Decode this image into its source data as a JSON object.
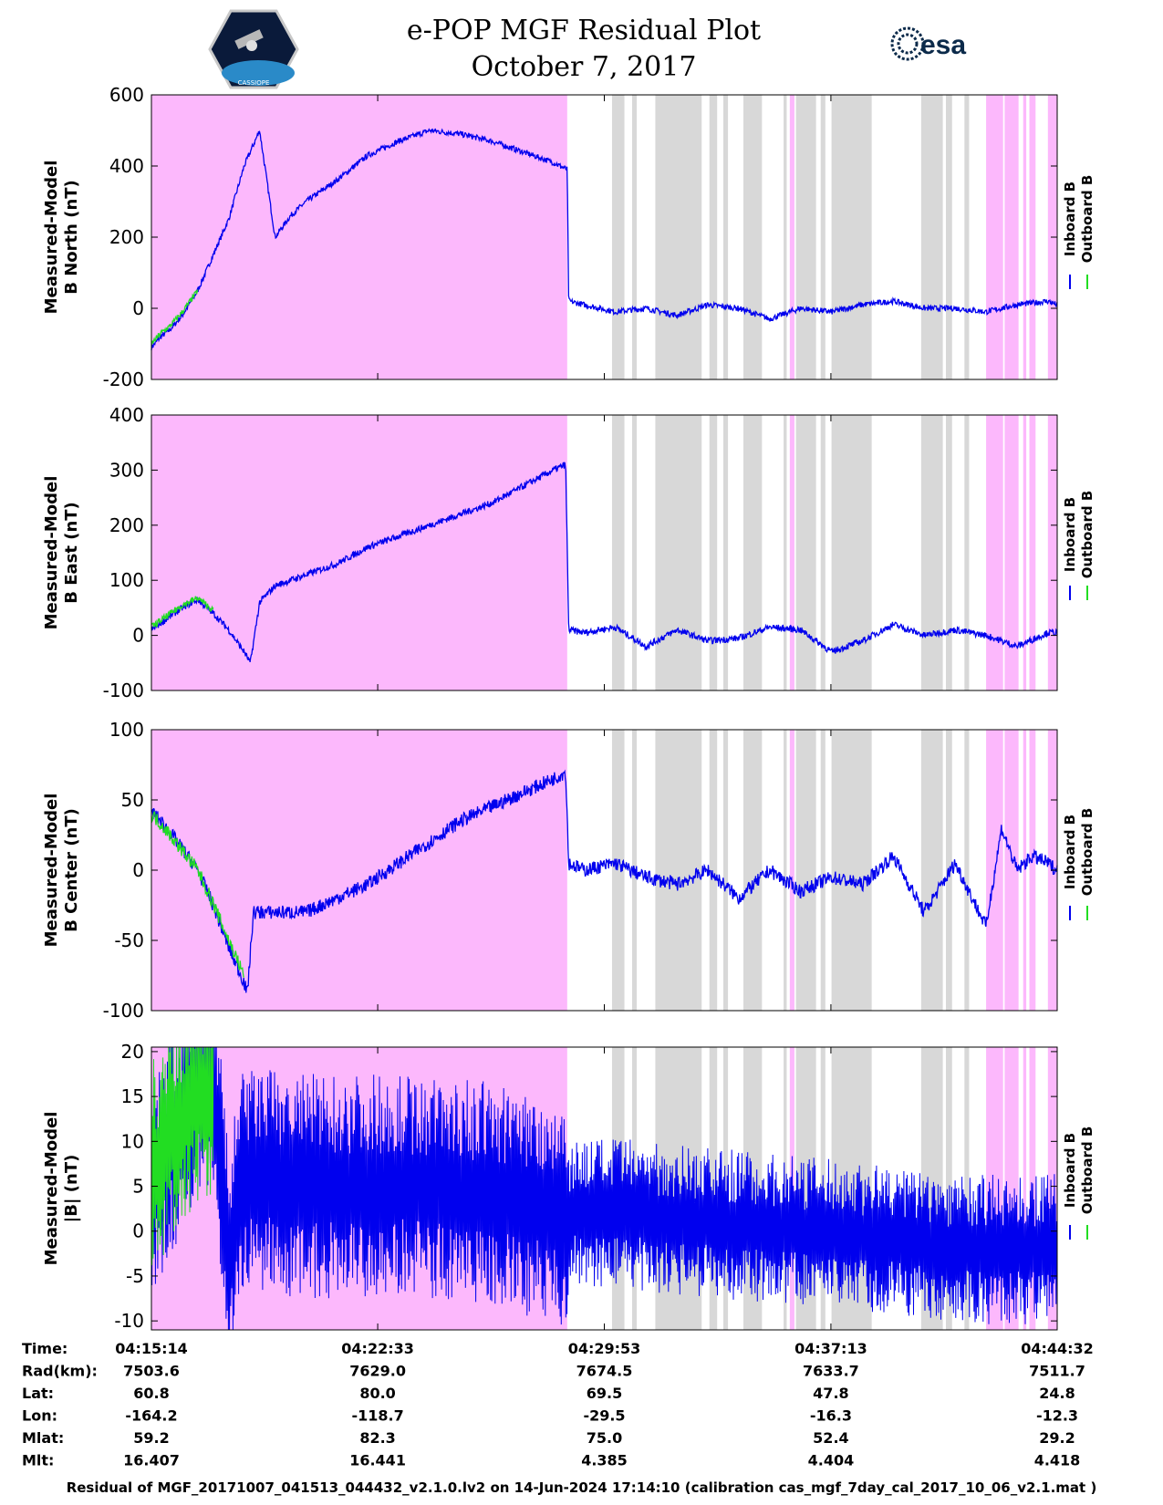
{
  "title": {
    "line1": "e-POP MGF Residual Plot",
    "line2": "October 7, 2017"
  },
  "logos": {
    "left_label": "CASSIOPE",
    "right_label": "esa"
  },
  "colors": {
    "magenta": "#fcb8fc",
    "gray": "#d8d8d8",
    "inboard": "#0000ee",
    "outboard": "#22dd22"
  },
  "chart_data": [
    {
      "type": "line",
      "id": "bnorth",
      "ylabel_line1": "Measured-Model",
      "ylabel_line2": "B North (nT)",
      "ylim": [
        -200,
        600
      ],
      "yticks": [
        600,
        400,
        200,
        0,
        -200
      ],
      "ytick_labels": [
        "600",
        "400",
        "200",
        "0",
        "-200"
      ],
      "legend": [
        "Inboard B",
        "Outboard B"
      ],
      "series": [
        {
          "name": "Inboard B",
          "x": [
            0,
            0.3,
            0.6,
            1.0,
            1.5,
            2.0,
            2.5,
            3.0,
            3.5,
            4.0,
            4.5,
            5.0,
            5.5,
            6.0,
            7.0,
            8.0,
            9.0,
            10.0,
            11.0,
            12.0,
            13.0,
            13.45,
            13.5,
            14,
            15,
            16,
            17,
            18,
            19,
            20,
            21,
            22,
            23,
            24,
            25,
            26,
            27,
            28,
            29,
            29.3
          ],
          "y": [
            -110,
            -80,
            -60,
            -20,
            50,
            150,
            250,
            400,
            500,
            200,
            260,
            300,
            330,
            360,
            430,
            470,
            500,
            490,
            470,
            440,
            410,
            390,
            20,
            10,
            -10,
            0,
            -20,
            10,
            0,
            -30,
            0,
            -10,
            10,
            20,
            0,
            0,
            -10,
            10,
            20,
            10
          ]
        },
        {
          "name": "Outboard B",
          "x": [
            0,
            0.3,
            0.6,
            1.0,
            1.5
          ],
          "y": [
            -100,
            -70,
            -50,
            -10,
            50
          ]
        }
      ]
    },
    {
      "type": "line",
      "id": "beast",
      "ylabel_line1": "Measured-Model",
      "ylabel_line2": "B East (nT)",
      "ylim": [
        -100,
        400
      ],
      "yticks": [
        400,
        300,
        200,
        100,
        0,
        -100
      ],
      "ytick_labels": [
        "400",
        "300",
        "200",
        "100",
        "0",
        "-100"
      ],
      "legend": [
        "Inboard B",
        "Outboard B"
      ],
      "series": [
        {
          "name": "Inboard B",
          "x": [
            0,
            0.5,
            1.0,
            1.5,
            2.0,
            2.5,
            3.0,
            3.2,
            3.5,
            4.0,
            5.0,
            6.0,
            7.0,
            8.0,
            9.0,
            10.0,
            11.0,
            12.0,
            13.0,
            13.4,
            13.5,
            14,
            15,
            16,
            17,
            18,
            19,
            20,
            21,
            22,
            23,
            24,
            25,
            26,
            27,
            28,
            29,
            29.3
          ],
          "y": [
            10,
            30,
            50,
            65,
            40,
            10,
            -30,
            -50,
            60,
            90,
            110,
            130,
            160,
            180,
            200,
            220,
            240,
            270,
            300,
            310,
            10,
            5,
            15,
            -20,
            10,
            -10,
            -5,
            15,
            10,
            -30,
            -10,
            20,
            0,
            10,
            0,
            -20,
            5,
            5
          ]
        },
        {
          "name": "Outboard B",
          "x": [
            0,
            0.5,
            1.0,
            1.5,
            2.0
          ],
          "y": [
            15,
            35,
            55,
            68,
            45
          ]
        }
      ]
    },
    {
      "type": "line",
      "id": "bcenter",
      "ylabel_line1": "Measured-Model",
      "ylabel_line2": "B Center (nT)",
      "ylim": [
        -100,
        100
      ],
      "yticks": [
        100,
        50,
        0,
        -50,
        -100
      ],
      "ytick_labels": [
        "100",
        "50",
        "0",
        "-50",
        "-100"
      ],
      "legend": [
        "Inboard B",
        "Outboard B"
      ],
      "series": [
        {
          "name": "Inboard B",
          "x": [
            0,
            0.5,
            1.0,
            1.5,
            2.0,
            2.5,
            3.0,
            3.1,
            3.3,
            4,
            5,
            6,
            7,
            8,
            9,
            10,
            11,
            12,
            13,
            13.4,
            13.5,
            14,
            15,
            16,
            17,
            18,
            19,
            20,
            21,
            22,
            23,
            24,
            25,
            26,
            27,
            27.5,
            28,
            28.5,
            29,
            29.3
          ],
          "y": [
            42,
            30,
            15,
            0,
            -25,
            -55,
            -80,
            -88,
            -30,
            -30,
            -30,
            -20,
            -10,
            5,
            20,
            35,
            45,
            55,
            65,
            70,
            5,
            0,
            5,
            -5,
            -10,
            0,
            -20,
            0,
            -15,
            -5,
            -10,
            10,
            -30,
            5,
            -40,
            30,
            0,
            10,
            5,
            0
          ]
        },
        {
          "name": "Outboard B",
          "x": [
            0,
            0.5,
            1.0,
            1.5,
            2.0,
            2.5,
            3.0
          ],
          "y": [
            40,
            28,
            14,
            0,
            -24,
            -50,
            -75
          ]
        }
      ]
    },
    {
      "type": "line",
      "id": "babs",
      "ylabel_line1": "Measured-Model",
      "ylabel_line2": "|B| (nT)",
      "ylim": [
        -11,
        20.5
      ],
      "yticks": [
        20,
        15,
        10,
        5,
        0,
        -5,
        -10
      ],
      "ytick_labels": [
        "20",
        "15",
        "10",
        "5",
        "0",
        "-5",
        "-10"
      ],
      "legend": [
        "Inboard B",
        "Outboard B"
      ],
      "series": [
        {
          "name": "Inboard B",
          "x": [
            0,
            1,
            1.5,
            2,
            2.3,
            2.5,
            3,
            5,
            8,
            11,
            13.5,
            15,
            18,
            21,
            24,
            26,
            28,
            29.3
          ],
          "y": [
            5,
            12,
            17,
            18,
            5,
            -3,
            6,
            5,
            5,
            4,
            2,
            2,
            1,
            0,
            -1,
            -2,
            -2,
            -2
          ]
        },
        {
          "name": "Outboard B",
          "x": [
            0,
            0.5,
            1,
            1.5,
            2
          ],
          "y": [
            6,
            10,
            13,
            16,
            15
          ]
        }
      ]
    }
  ],
  "shading": {
    "x_range": [
      0,
      29.3
    ],
    "magenta": [
      [
        0,
        13.45
      ],
      [
        20.65,
        20.8
      ],
      [
        27.0,
        27.55
      ],
      [
        27.6,
        28.05
      ],
      [
        28.2,
        28.3
      ],
      [
        28.4,
        28.6
      ],
      [
        29.0,
        29.3
      ]
    ],
    "gray": [
      [
        14.9,
        15.3
      ],
      [
        15.55,
        15.7
      ],
      [
        16.3,
        17.8
      ],
      [
        18.05,
        18.3
      ],
      [
        18.5,
        18.65
      ],
      [
        19.15,
        19.75
      ],
      [
        20.45,
        20.55
      ],
      [
        20.85,
        21.5
      ],
      [
        21.65,
        21.8
      ],
      [
        22.0,
        23.3
      ],
      [
        24.9,
        25.6
      ],
      [
        25.7,
        25.9
      ],
      [
        26.3,
        26.45
      ]
    ]
  },
  "x_ticks": [
    0,
    7.32,
    14.65,
    21.98,
    29.3
  ],
  "stats": {
    "row_labels": [
      "Time:",
      "Rad(km):",
      "Lat:",
      "Lon:",
      "Mlat:",
      "Mlt:"
    ],
    "columns": [
      [
        "04:15:14",
        "7503.6",
        "60.8",
        "-164.2",
        "59.2",
        "16.407"
      ],
      [
        "04:22:33",
        "7629.0",
        "80.0",
        "-118.7",
        "82.3",
        "16.441"
      ],
      [
        "04:29:53",
        "7674.5",
        "69.5",
        "-29.5",
        "75.0",
        "4.385"
      ],
      [
        "04:37:13",
        "7633.7",
        "47.8",
        "-16.3",
        "52.4",
        "4.404"
      ],
      [
        "04:44:32",
        "7511.7",
        "24.8",
        "-12.3",
        "29.2",
        "4.418"
      ]
    ]
  },
  "footer": "Residual of MGF_20171007_041513_044432_v2.1.0.lv2 on 14-Jun-2024 17:14:10 (calibration cas_mgf_7day_cal_2017_10_06_v2.1.mat )"
}
